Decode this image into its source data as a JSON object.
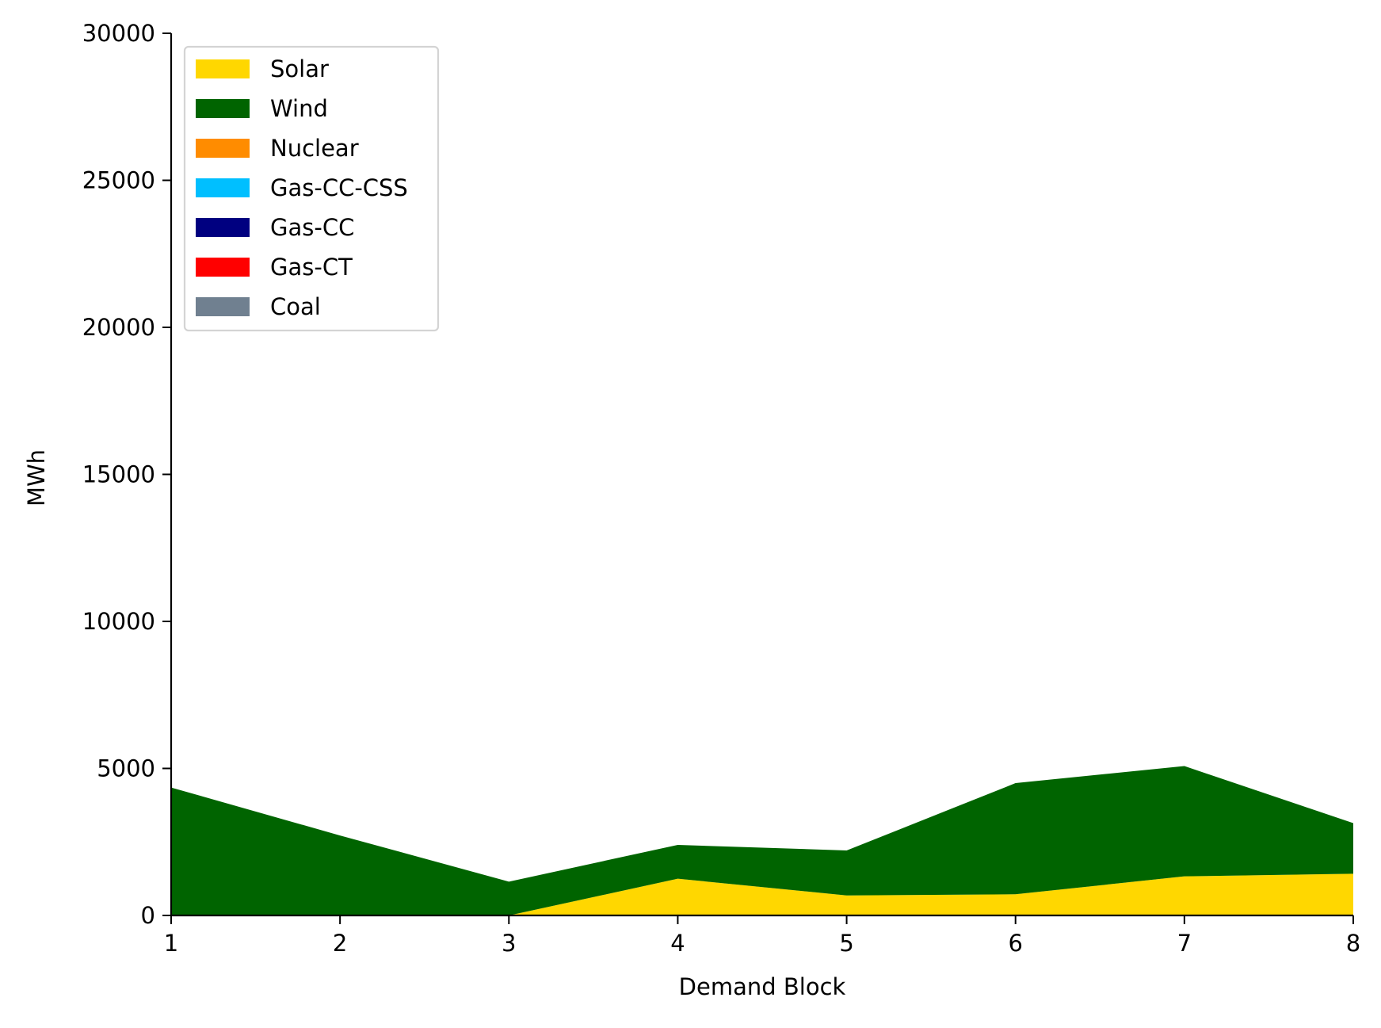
{
  "chart_data": {
    "type": "area",
    "stacked": true,
    "title": "",
    "xlabel": "Demand Block",
    "ylabel": "MWh",
    "xlim": [
      1,
      8
    ],
    "ylim": [
      0,
      30000
    ],
    "x": [
      1,
      2,
      3,
      4,
      5,
      6,
      7,
      8
    ],
    "x_ticks": [
      "1",
      "2",
      "3",
      "4",
      "5",
      "6",
      "7",
      "8"
    ],
    "y_ticks": [
      "0",
      "5000",
      "10000",
      "15000",
      "20000",
      "25000",
      "30000"
    ],
    "grid": false,
    "legend_position": "top-left",
    "series": [
      {
        "name": "Solar",
        "color": "#FFD700",
        "values": [
          0,
          0,
          0,
          1250,
          680,
          720,
          1330,
          1420
        ]
      },
      {
        "name": "Wind",
        "color": "#006400",
        "values": [
          4350,
          2720,
          1150,
          1150,
          1530,
          3780,
          3750,
          1720
        ]
      },
      {
        "name": "Nuclear",
        "color": "#FF8C00",
        "values": [
          0,
          0,
          0,
          0,
          0,
          0,
          0,
          0
        ]
      },
      {
        "name": "Gas-CC-CSS",
        "color": "#00BFFF",
        "values": [
          0,
          0,
          0,
          0,
          0,
          0,
          0,
          0
        ]
      },
      {
        "name": "Gas-CC",
        "color": "#000080",
        "values": [
          0,
          0,
          0,
          0,
          0,
          0,
          0,
          0
        ]
      },
      {
        "name": "Gas-CT",
        "color": "#FF0000",
        "values": [
          0,
          0,
          0,
          0,
          0,
          0,
          0,
          0
        ]
      },
      {
        "name": "Coal",
        "color": "#708090",
        "values": [
          0,
          0,
          0,
          0,
          0,
          0,
          0,
          0
        ]
      }
    ]
  }
}
